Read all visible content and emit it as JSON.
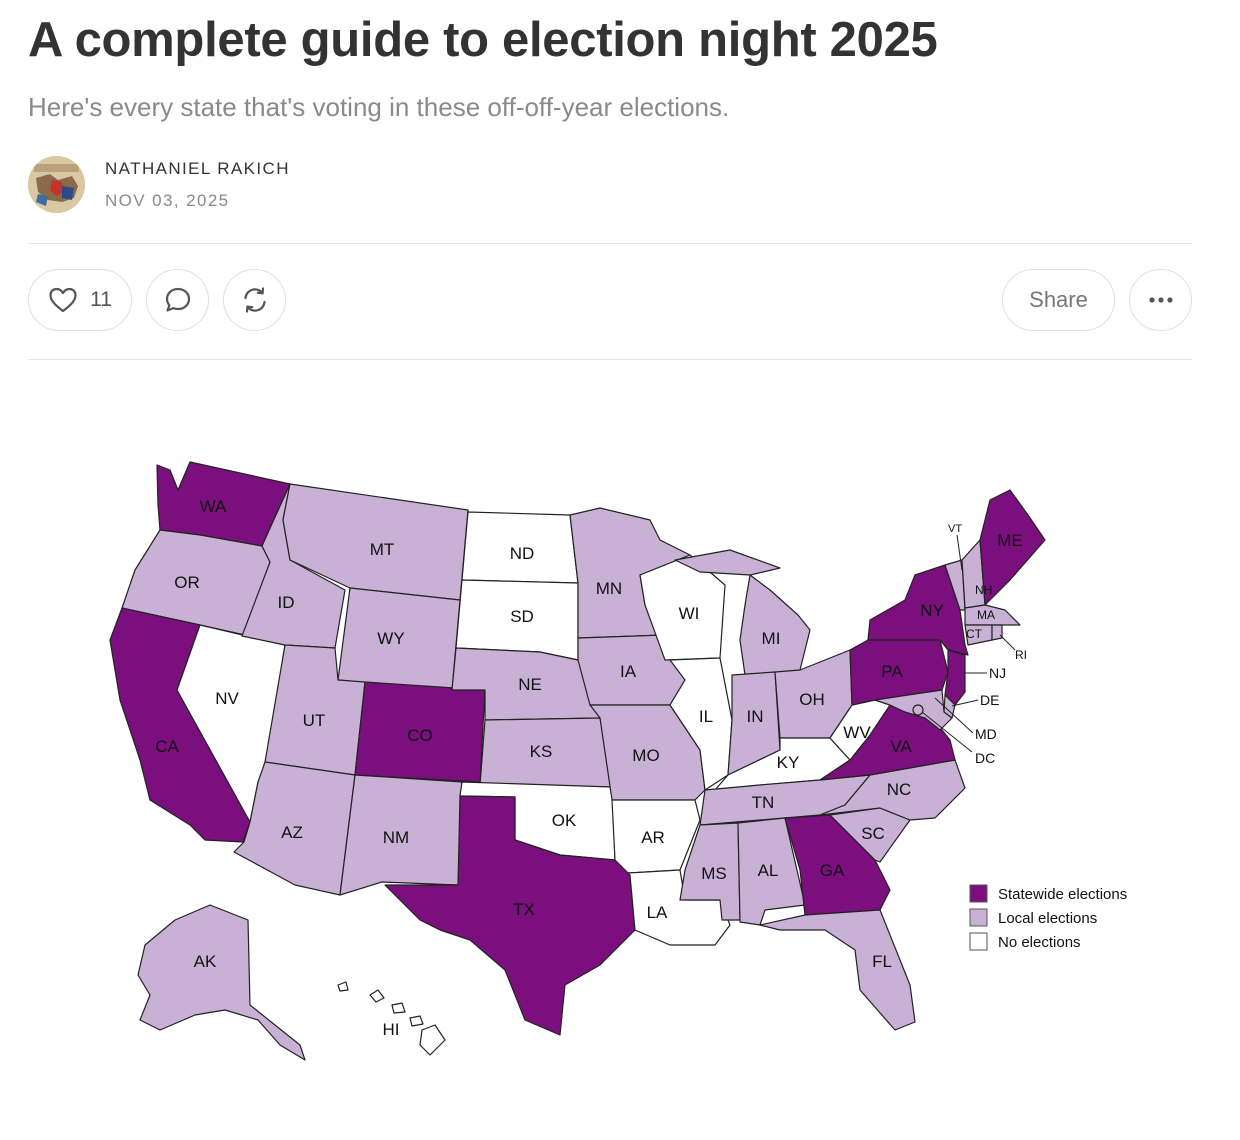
{
  "article": {
    "title": "A complete guide to election night 2025",
    "subtitle": "Here's every state that's voting in these off-off-year elections.",
    "author": "NATHANIEL RAKICH",
    "date": "NOV 03, 2025"
  },
  "actions": {
    "like_count": "11",
    "share_label": "Share",
    "icons": [
      "heart-icon",
      "comment-icon",
      "restack-icon",
      "more-icon"
    ]
  },
  "map": {
    "colors": {
      "statewide": "#7b0f7e",
      "local": "#c9b1d6",
      "none": "#ffffff"
    },
    "legend": [
      {
        "key": "statewide",
        "label": "Statewide elections"
      },
      {
        "key": "local",
        "label": "Local elections"
      },
      {
        "key": "none",
        "label": "No elections"
      }
    ],
    "states": [
      {
        "code": "WA",
        "status": "statewide"
      },
      {
        "code": "OR",
        "status": "local"
      },
      {
        "code": "CA",
        "status": "statewide"
      },
      {
        "code": "NV",
        "status": "none"
      },
      {
        "code": "ID",
        "status": "local"
      },
      {
        "code": "MT",
        "status": "local"
      },
      {
        "code": "WY",
        "status": "local"
      },
      {
        "code": "UT",
        "status": "local"
      },
      {
        "code": "CO",
        "status": "statewide"
      },
      {
        "code": "AZ",
        "status": "local"
      },
      {
        "code": "NM",
        "status": "local"
      },
      {
        "code": "ND",
        "status": "none"
      },
      {
        "code": "SD",
        "status": "none"
      },
      {
        "code": "NE",
        "status": "local"
      },
      {
        "code": "KS",
        "status": "local"
      },
      {
        "code": "OK",
        "status": "none"
      },
      {
        "code": "TX",
        "status": "statewide"
      },
      {
        "code": "MN",
        "status": "local"
      },
      {
        "code": "IA",
        "status": "local"
      },
      {
        "code": "MO",
        "status": "local"
      },
      {
        "code": "AR",
        "status": "none"
      },
      {
        "code": "LA",
        "status": "none"
      },
      {
        "code": "WI",
        "status": "none"
      },
      {
        "code": "IL",
        "status": "none"
      },
      {
        "code": "MI",
        "status": "local"
      },
      {
        "code": "IN",
        "status": "local"
      },
      {
        "code": "OH",
        "status": "local"
      },
      {
        "code": "KY",
        "status": "none"
      },
      {
        "code": "TN",
        "status": "local"
      },
      {
        "code": "MS",
        "status": "local"
      },
      {
        "code": "AL",
        "status": "local"
      },
      {
        "code": "GA",
        "status": "statewide"
      },
      {
        "code": "FL",
        "status": "local"
      },
      {
        "code": "SC",
        "status": "local"
      },
      {
        "code": "NC",
        "status": "local"
      },
      {
        "code": "VA",
        "status": "statewide"
      },
      {
        "code": "WV",
        "status": "none"
      },
      {
        "code": "PA",
        "status": "statewide"
      },
      {
        "code": "NY",
        "status": "statewide"
      },
      {
        "code": "VT",
        "status": "local"
      },
      {
        "code": "NH",
        "status": "local"
      },
      {
        "code": "ME",
        "status": "statewide"
      },
      {
        "code": "MA",
        "status": "local"
      },
      {
        "code": "CT",
        "status": "local"
      },
      {
        "code": "RI",
        "status": "local"
      },
      {
        "code": "NJ",
        "status": "statewide"
      },
      {
        "code": "DE",
        "status": "local"
      },
      {
        "code": "MD",
        "status": "local"
      },
      {
        "code": "DC",
        "status": "local"
      },
      {
        "code": "AK",
        "status": "local"
      },
      {
        "code": "HI",
        "status": "none"
      }
    ]
  }
}
